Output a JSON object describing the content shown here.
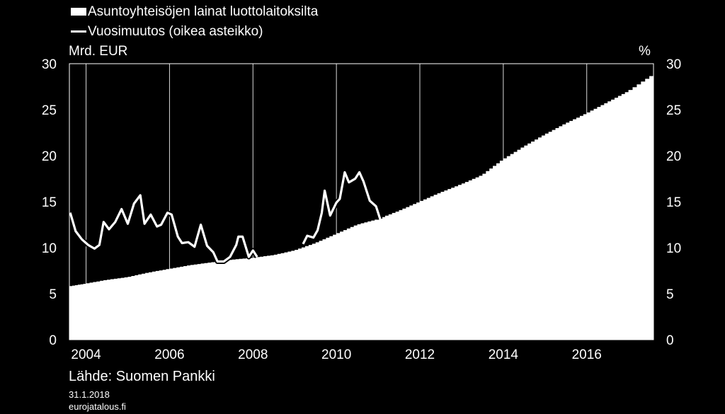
{
  "chart_data": {
    "type": "area",
    "title": "",
    "legend": [
      {
        "name": "Asuntoyhteisöjen lainat luottolaitoksilta",
        "kind": "area"
      },
      {
        "name": "Vuosimuutos (oikea asteikko)",
        "kind": "line"
      }
    ],
    "ylabel_left": "Mrd. EUR",
    "ylabel_right": "%",
    "ylim_left": [
      0,
      30
    ],
    "ylim_right": [
      0,
      30
    ],
    "yticks": [
      0,
      5,
      10,
      15,
      20,
      25,
      30
    ],
    "xlim": [
      2003.6,
      2017.6
    ],
    "xticks": [
      "2004",
      "2006",
      "2008",
      "2010",
      "2012",
      "2014",
      "2016"
    ],
    "grid": "vertical",
    "series": [
      {
        "name": "Asuntoyhteisöjen lainat luottolaitoksilta",
        "axis": "left",
        "x": [
          2003.6,
          2004.0,
          2004.5,
          2005.0,
          2005.5,
          2006.0,
          2006.5,
          2007.0,
          2007.5,
          2008.0,
          2008.5,
          2009.0,
          2009.5,
          2010.0,
          2010.5,
          2011.0,
          2011.5,
          2012.0,
          2012.5,
          2013.0,
          2013.5,
          2014.0,
          2014.5,
          2015.0,
          2015.5,
          2016.0,
          2016.5,
          2017.0,
          2017.6
        ],
        "values": [
          5.8,
          6.1,
          6.5,
          6.8,
          7.3,
          7.7,
          8.1,
          8.4,
          8.7,
          8.9,
          9.2,
          9.7,
          10.5,
          11.5,
          12.5,
          13.1,
          14.0,
          15.0,
          16.0,
          16.9,
          17.9,
          19.6,
          21.0,
          22.3,
          23.5,
          24.6,
          25.8,
          27.0,
          28.8
        ]
      },
      {
        "name": "Vuosimuutos (oikea asteikko)",
        "axis": "right",
        "x": [
          2003.62,
          2003.75,
          2003.9,
          2004.05,
          2004.2,
          2004.32,
          2004.42,
          2004.55,
          2004.7,
          2004.85,
          2005.0,
          2005.15,
          2005.3,
          2005.4,
          2005.55,
          2005.7,
          2005.8,
          2005.95,
          2006.05,
          2006.2,
          2006.3,
          2006.45,
          2006.6,
          2006.75,
          2006.9,
          2007.05,
          2007.15,
          2007.3,
          2007.45,
          2007.6,
          2007.65,
          2007.75,
          2007.9,
          2008.0,
          2008.1
        ],
        "values": [
          13.8,
          11.8,
          10.9,
          10.3,
          9.9,
          10.3,
          12.8,
          12.0,
          12.8,
          14.2,
          12.6,
          14.8,
          15.7,
          12.6,
          13.6,
          12.3,
          12.5,
          13.8,
          13.6,
          11.2,
          10.5,
          10.6,
          10.1,
          12.5,
          10.2,
          9.5,
          8.5,
          8.5,
          9.0,
          10.3,
          11.2,
          11.2,
          9.0,
          9.7,
          9.0
        ]
      },
      {
        "name": "Vuosimuutos (oikea asteikko)",
        "axis": "right",
        "x": [
          2009.2,
          2009.3,
          2009.45,
          2009.55,
          2009.65,
          2009.72,
          2009.85,
          2010.0,
          2010.08,
          2010.2,
          2010.3,
          2010.45,
          2010.55,
          2010.65,
          2010.8,
          2010.95,
          2011.05
        ],
        "values": [
          10.4,
          11.3,
          11.1,
          11.9,
          13.8,
          16.2,
          13.5,
          14.9,
          15.3,
          18.2,
          17.1,
          17.5,
          18.2,
          17.2,
          15.1,
          14.5,
          13.1
        ]
      }
    ]
  },
  "source": "Lähde: Suomen Pankki",
  "date": "31.1.2018",
  "site": "eurojatalous.fi"
}
